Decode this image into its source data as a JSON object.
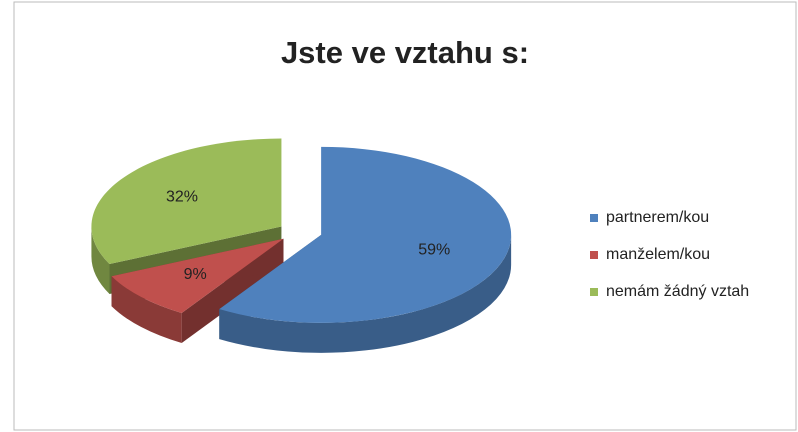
{
  "chart_data": {
    "type": "pie",
    "title": "Jste ve vztahu s:",
    "categories": [
      "partnerem/kou",
      "manželem/kou",
      "nemám žádný vztah"
    ],
    "values": [
      59,
      9,
      32
    ],
    "value_labels": [
      "59%",
      "9%",
      "32%"
    ],
    "colors": [
      "#4f81bd",
      "#c0504d",
      "#9bbb59"
    ],
    "legend": "right"
  }
}
